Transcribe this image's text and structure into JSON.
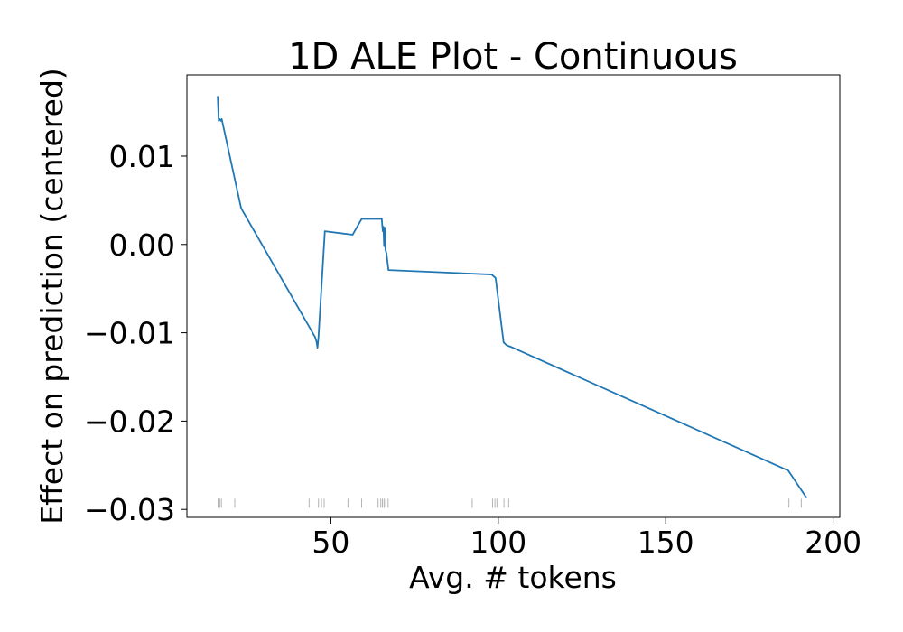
{
  "chart_data": {
    "type": "line",
    "title": "1D ALE Plot - Continuous",
    "xlabel": "Avg. # tokens",
    "ylabel": "Effect on prediction (centered)",
    "xlim": [
      7,
      202
    ],
    "ylim": [
      -0.0309,
      0.0192
    ],
    "xticks": [
      50,
      100,
      150,
      200
    ],
    "xtick_labels": [
      "50",
      "100",
      "150",
      "200"
    ],
    "yticks": [
      0.01,
      0.0,
      -0.01,
      -0.02,
      -0.03
    ],
    "ytick_labels": [
      "0.01",
      "0.00",
      "−0.01",
      "−0.02",
      "−0.03"
    ],
    "grid": false,
    "legend": "none",
    "line_color": "#1f77b4",
    "series": [
      {
        "x": [
          16.2,
          16.5,
          16.8,
          17.1,
          17.4,
          23.2,
          45.3,
          45.7,
          46.0,
          46.3,
          48.2,
          56.5,
          59.2,
          65.2,
          65.5,
          65.7,
          65.9,
          66.1,
          66.3,
          66.6,
          67.2,
          98.0,
          99.2,
          101.6,
          102.5,
          103.8,
          186.6,
          192.1
        ],
        "y": [
          0.0168,
          0.014,
          0.0142,
          0.014,
          0.0142,
          0.0041,
          -0.0105,
          -0.011,
          -0.0117,
          -0.0105,
          0.0015,
          0.0011,
          0.0029,
          0.0029,
          0.0015,
          0.002,
          -0.0002,
          0.0019,
          -0.0006,
          -0.001,
          -0.0029,
          -0.0034,
          -0.0038,
          -0.0111,
          -0.0114,
          -0.0116,
          -0.0256,
          -0.0287
        ]
      }
    ],
    "rug_x": [
      16.3,
      16.8,
      17.3,
      21.3,
      43.5,
      46.3,
      47.2,
      48.0,
      55.1,
      59.2,
      64.1,
      64.9,
      65.4,
      65.9,
      66.4,
      67.1,
      92.2,
      98.3,
      99.0,
      99.6,
      101.7,
      103.1,
      186.8,
      190.5
    ],
    "rug_y": -0.0293
  }
}
